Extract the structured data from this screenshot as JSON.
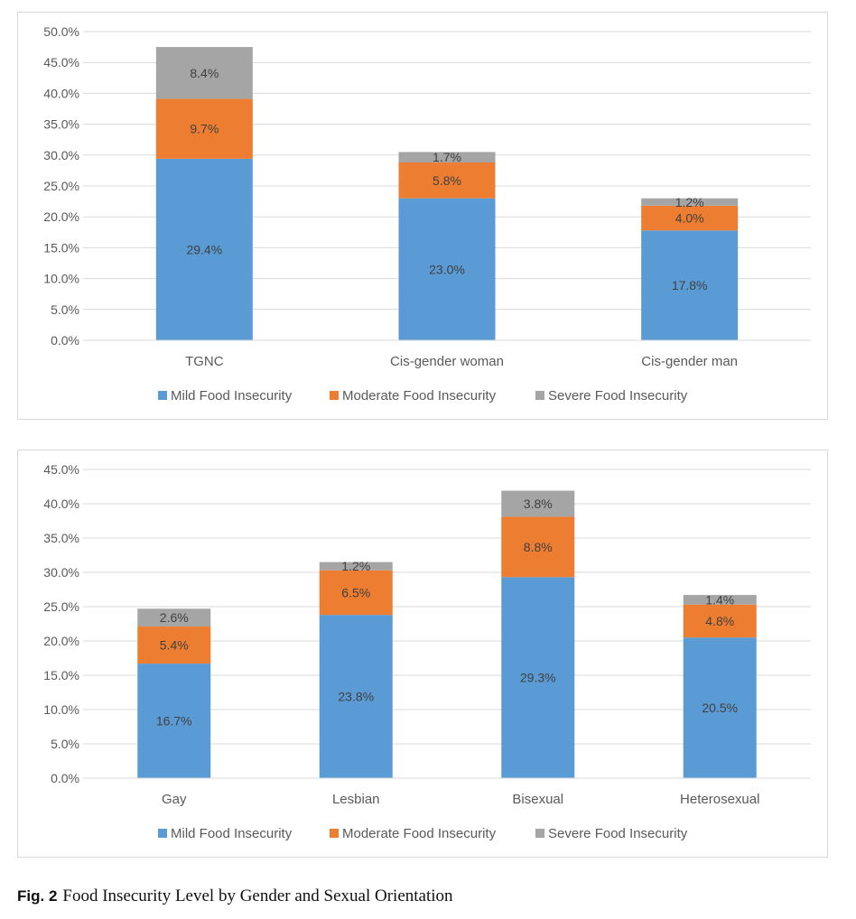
{
  "chart_data": [
    {
      "type": "bar",
      "stacked": true,
      "title": "",
      "xlabel": "",
      "ylabel": "",
      "ylim": [
        0,
        50
      ],
      "ytick_step": 5,
      "ytick_labels": [
        "0.0%",
        "5.0%",
        "10.0%",
        "15.0%",
        "20.0%",
        "25.0%",
        "30.0%",
        "35.0%",
        "40.0%",
        "45.0%",
        "50.0%"
      ],
      "categories": [
        "TGNC",
        "Cis-gender woman",
        "Cis-gender man"
      ],
      "series": [
        {
          "name": "Mild Food Insecurity",
          "color": "#5b9bd5",
          "values": [
            29.4,
            23.0,
            17.8
          ],
          "labels": [
            "29.4%",
            "23.0%",
            "17.8%"
          ]
        },
        {
          "name": "Moderate Food Insecurity",
          "color": "#ed7d31",
          "values": [
            9.7,
            5.8,
            4.0
          ],
          "labels": [
            "9.7%",
            "5.8%",
            "4.0%"
          ]
        },
        {
          "name": "Severe Food Insecurity",
          "color": "#a5a5a5",
          "values": [
            8.4,
            1.7,
            1.2
          ],
          "labels": [
            "8.4%",
            "1.7%",
            "1.2%"
          ]
        }
      ],
      "grid": true,
      "legend": "bottom"
    },
    {
      "type": "bar",
      "stacked": true,
      "title": "",
      "xlabel": "",
      "ylabel": "",
      "ylim": [
        0,
        45
      ],
      "ytick_step": 5,
      "ytick_labels": [
        "0.0%",
        "5.0%",
        "10.0%",
        "15.0%",
        "20.0%",
        "25.0%",
        "30.0%",
        "35.0%",
        "40.0%",
        "45.0%"
      ],
      "categories": [
        "Gay",
        "Lesbian",
        "Bisexual",
        "Heterosexual"
      ],
      "series": [
        {
          "name": "Mild Food Insecurity",
          "color": "#5b9bd5",
          "values": [
            16.7,
            23.8,
            29.3,
            20.5
          ],
          "labels": [
            "16.7%",
            "23.8%",
            "29.3%",
            "20.5%"
          ]
        },
        {
          "name": "Moderate Food Insecurity",
          "color": "#ed7d31",
          "values": [
            5.4,
            6.5,
            8.8,
            4.8
          ],
          "labels": [
            "5.4%",
            "6.5%",
            "8.8%",
            "4.8%"
          ]
        },
        {
          "name": "Severe Food Insecurity",
          "color": "#a5a5a5",
          "values": [
            2.6,
            1.2,
            3.8,
            1.4
          ],
          "labels": [
            "2.6%",
            "1.2%",
            "3.8%",
            "1.4%"
          ]
        }
      ],
      "grid": true,
      "legend": "bottom"
    }
  ],
  "caption": {
    "fig_label": "Fig. 2",
    "text": "Food Insecurity Level by Gender and Sexual Orientation"
  }
}
